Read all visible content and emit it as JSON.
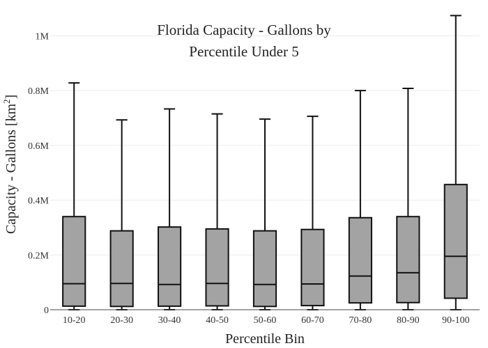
{
  "chart_data": {
    "type": "box",
    "title_line1": "Florida Capacity - Gallons by",
    "title_line2": "Percentile Under 5",
    "xlabel": "Percentile Bin",
    "ylabel_main": "Capacity - Gallons  [km",
    "ylabel_sup": "2",
    "ylabel_close": "]",
    "ylim": [
      0,
      1080000
    ],
    "yticks": [
      0,
      200000,
      400000,
      600000,
      800000,
      1000000
    ],
    "ytick_labels": [
      "0",
      "0.2M",
      "0.4M",
      "0.6M",
      "0.8M",
      "1M"
    ],
    "categories": [
      "10-20",
      "20-30",
      "30-40",
      "40-50",
      "50-60",
      "60-70",
      "70-80",
      "80-90",
      "90-100"
    ],
    "boxes": [
      {
        "min": 0,
        "q1": 13000,
        "median": 95000,
        "q3": 340000,
        "max": 828000
      },
      {
        "min": 0,
        "q1": 12000,
        "median": 96000,
        "q3": 288000,
        "max": 693000
      },
      {
        "min": 0,
        "q1": 13000,
        "median": 92000,
        "q3": 302000,
        "max": 733000
      },
      {
        "min": 0,
        "q1": 14000,
        "median": 96000,
        "q3": 295000,
        "max": 715000
      },
      {
        "min": 0,
        "q1": 12000,
        "median": 92000,
        "q3": 288000,
        "max": 696000
      },
      {
        "min": 0,
        "q1": 15000,
        "median": 94000,
        "q3": 293000,
        "max": 706000
      },
      {
        "min": 0,
        "q1": 25000,
        "median": 123000,
        "q3": 336000,
        "max": 800000
      },
      {
        "min": 0,
        "q1": 26000,
        "median": 135000,
        "q3": 340000,
        "max": 808000
      },
      {
        "min": 0,
        "q1": 42000,
        "median": 195000,
        "q3": 457000,
        "max": 1074000
      }
    ],
    "grid": true,
    "legend": "none"
  }
}
